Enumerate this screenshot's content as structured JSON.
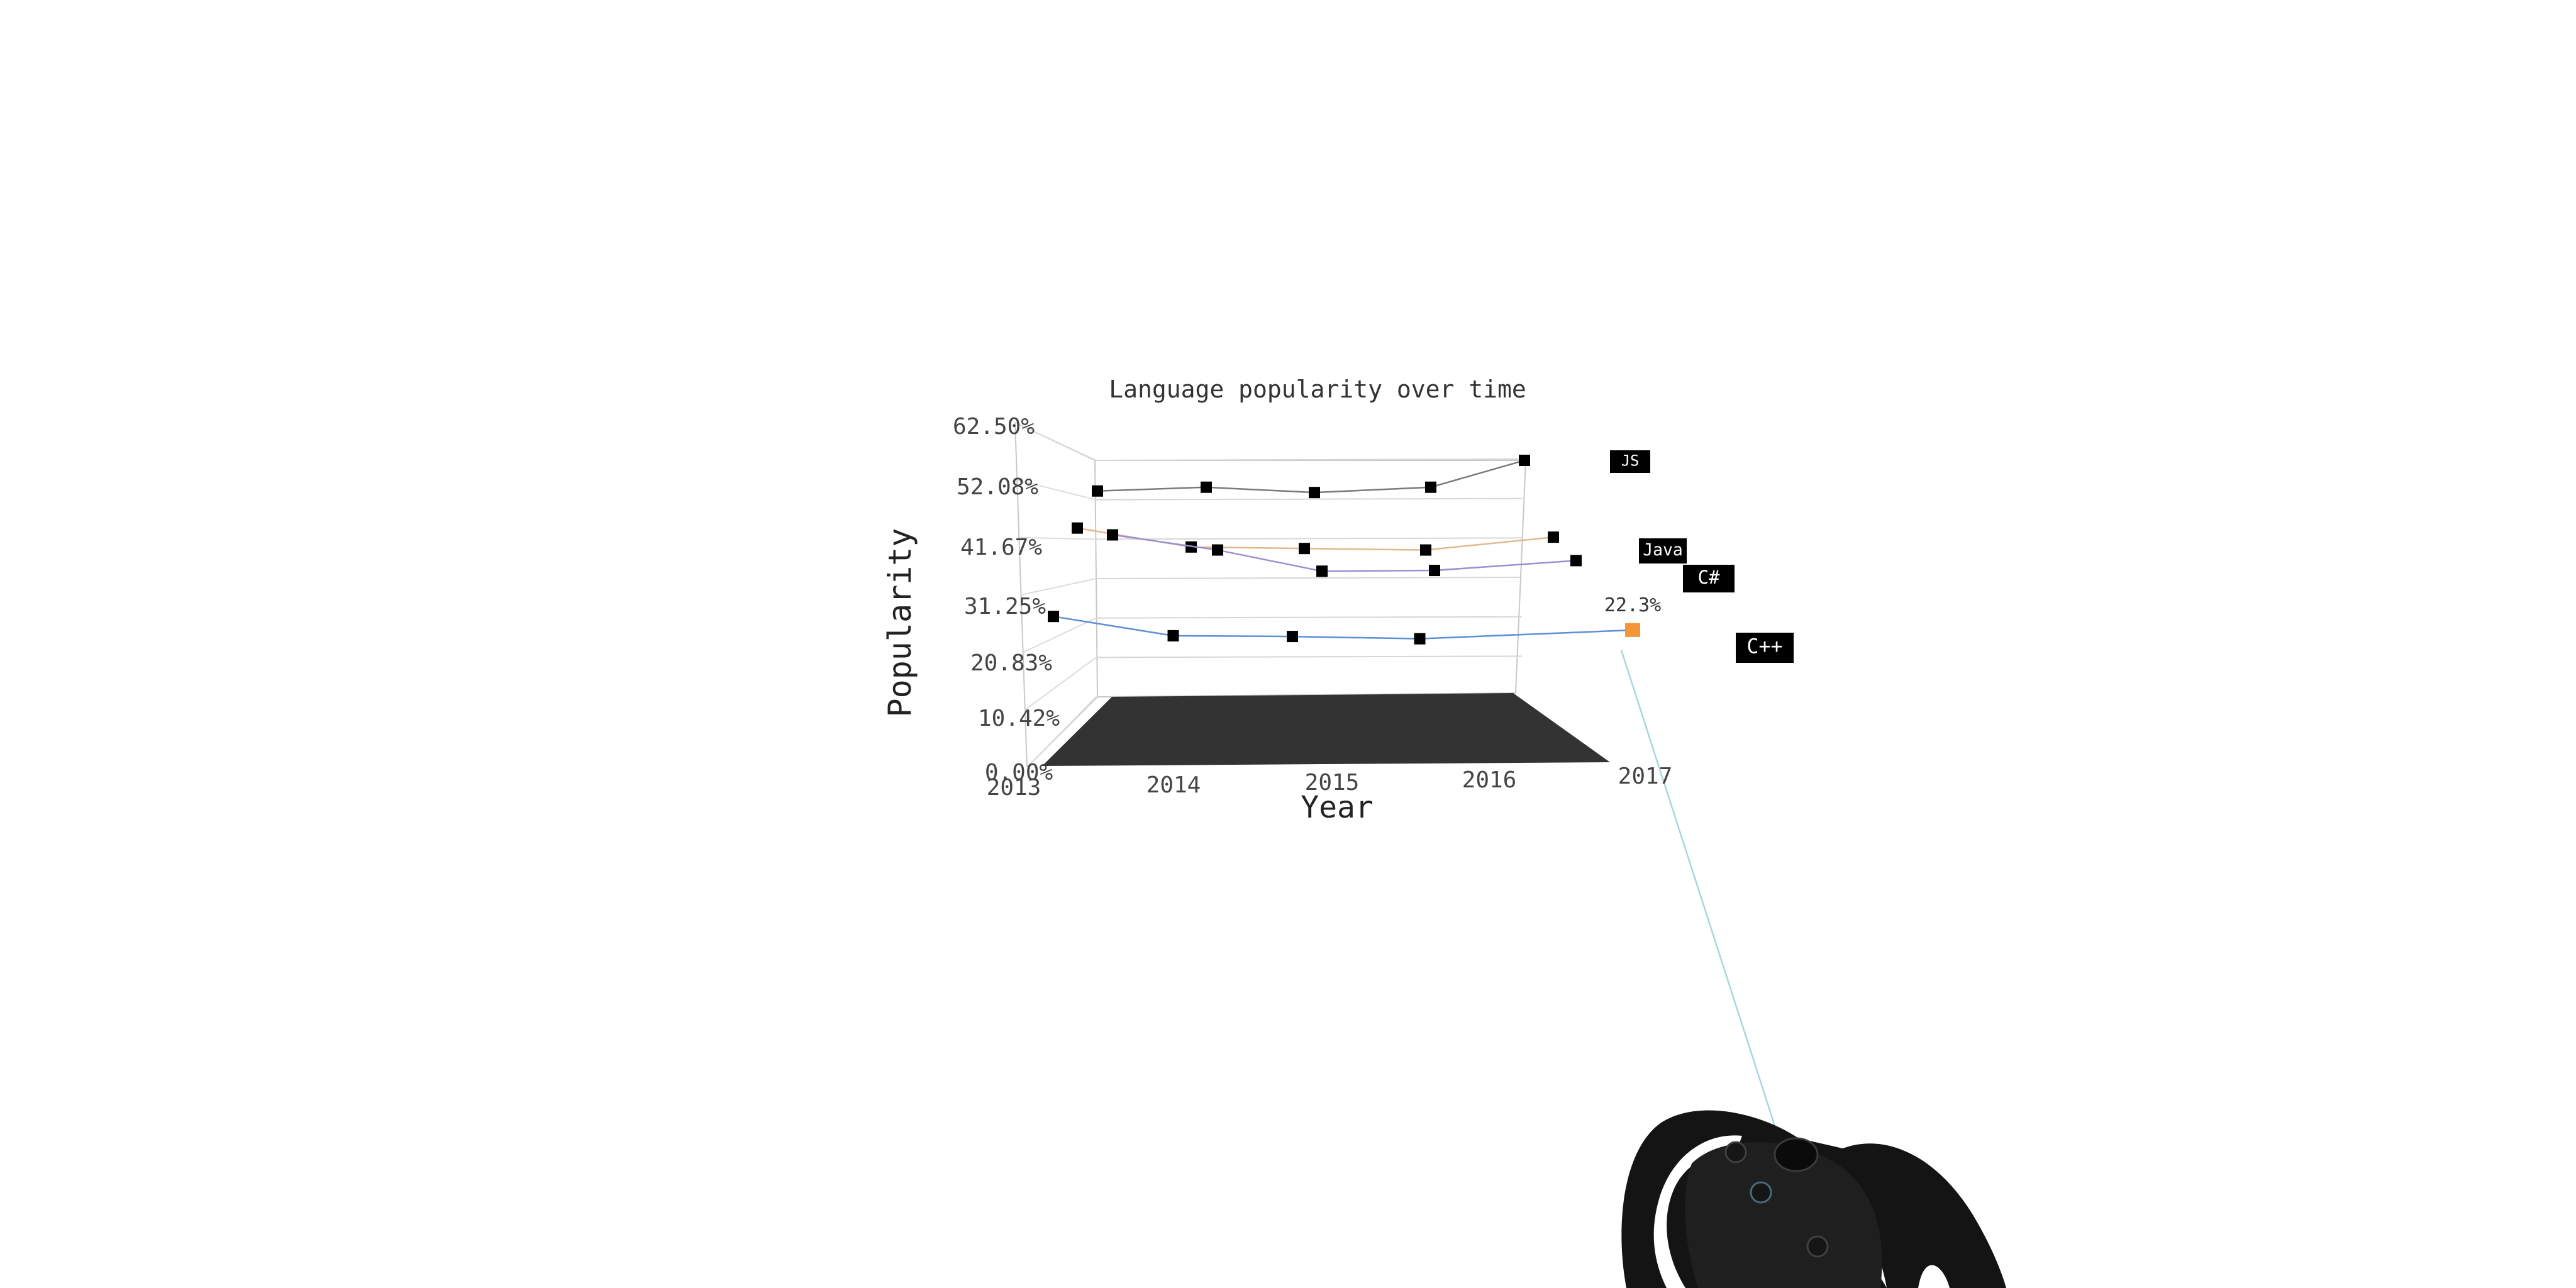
{
  "chart_data": {
    "type": "line",
    "title": "Language popularity over time",
    "xlabel": "Year",
    "ylabel": "Popularity",
    "x": [
      "2013",
      "2014",
      "2015",
      "2016",
      "2017"
    ],
    "yticks": [
      "0.00%",
      "10.42%",
      "20.83%",
      "31.25%",
      "41.67%",
      "52.08%",
      "62.50%"
    ],
    "ylim": [
      0,
      62.5
    ],
    "series": [
      {
        "name": "JS",
        "values": [
          54.4,
          55.4,
          54.0,
          55.4,
          62.5
        ],
        "color": "#7a7a7a"
      },
      {
        "name": "Java",
        "values": [
          45.6,
          40.6,
          40.2,
          39.8,
          43.2
        ],
        "color": "#e0b98e"
      },
      {
        "name": "C#",
        "values": [
          44.8,
          40.8,
          35.2,
          35.4,
          38.0
        ],
        "color": "#9c8fd2"
      },
      {
        "name": "C++",
        "values": [
          25.9,
          20.8,
          20.6,
          20.0,
          22.3
        ],
        "color": "#5b8fd6"
      }
    ],
    "highlight": {
      "series": "C++",
      "x": "2017",
      "label": "22.3%",
      "color": "#f39538"
    }
  },
  "scene": {
    "pointer_color": "#a9d6dc",
    "floor_color": "#333333",
    "marker_color": "#000000"
  }
}
